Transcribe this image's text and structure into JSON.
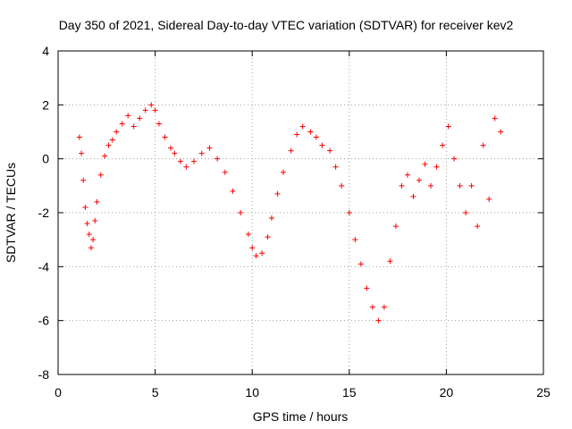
{
  "chart_data": {
    "type": "scatter",
    "title": "Day 350 of 2021, Sidereal Day-to-day VTEC variation (SDTVAR) for receiver kev2",
    "xlabel": "GPS time / hours",
    "ylabel": "SDTVAR / TECUs",
    "xlim": [
      0,
      25
    ],
    "ylim": [
      -8,
      4
    ],
    "xticks": [
      0,
      5,
      10,
      15,
      20,
      25
    ],
    "yticks": [
      -8,
      -6,
      -4,
      -2,
      0,
      2,
      4
    ],
    "xtick_labels": [
      "0",
      "5",
      "10",
      "15",
      "20",
      "25"
    ],
    "ytick_labels": [
      "-8",
      "-6",
      "-4",
      "-2",
      "0",
      "2",
      "4"
    ],
    "grid": true,
    "marker": "+",
    "color": "#ff0000",
    "series": [
      {
        "name": "SDTVAR",
        "x": [
          1.1,
          1.2,
          1.3,
          1.4,
          1.5,
          1.6,
          1.7,
          1.8,
          1.9,
          2.0,
          2.2,
          2.4,
          2.6,
          2.8,
          3.0,
          3.3,
          3.6,
          3.9,
          4.2,
          4.5,
          4.8,
          5.0,
          5.2,
          5.5,
          5.8,
          6.0,
          6.3,
          6.6,
          7.0,
          7.4,
          7.8,
          8.2,
          8.6,
          9.0,
          9.4,
          9.8,
          10.0,
          10.2,
          10.5,
          10.8,
          11.0,
          11.3,
          11.6,
          12.0,
          12.3,
          12.6,
          13.0,
          13.3,
          13.6,
          14.0,
          14.3,
          14.6,
          15.0,
          15.3,
          15.6,
          15.9,
          16.2,
          16.5,
          16.8,
          17.1,
          17.4,
          17.7,
          18.0,
          18.3,
          18.6,
          18.9,
          19.2,
          19.5,
          19.8,
          20.1,
          20.4,
          20.7,
          21.0,
          21.3,
          21.6,
          21.9,
          22.2,
          22.5,
          22.8
        ],
        "y": [
          0.8,
          0.2,
          -0.8,
          -1.8,
          -2.4,
          -2.8,
          -3.3,
          -3.0,
          -2.3,
          -1.6,
          -0.6,
          0.1,
          0.5,
          0.7,
          1.0,
          1.3,
          1.6,
          1.2,
          1.5,
          1.8,
          2.0,
          1.8,
          1.3,
          0.8,
          0.4,
          0.2,
          -0.1,
          -0.3,
          -0.1,
          0.2,
          0.4,
          0.0,
          -0.5,
          -1.2,
          -2.0,
          -2.8,
          -3.3,
          -3.6,
          -3.5,
          -2.9,
          -2.2,
          -1.3,
          -0.5,
          0.3,
          0.9,
          1.2,
          1.0,
          0.8,
          0.5,
          0.3,
          -0.3,
          -1.0,
          -2.0,
          -3.0,
          -3.9,
          -4.8,
          -5.5,
          -6.0,
          -5.5,
          -3.8,
          -2.5,
          -1.0,
          -0.6,
          -1.4,
          -0.8,
          -0.2,
          -1.0,
          -0.3,
          0.5,
          1.2,
          0.0,
          -1.0,
          -2.0,
          -1.0,
          -2.5,
          0.5,
          -1.5,
          1.5,
          1.0
        ]
      }
    ]
  }
}
